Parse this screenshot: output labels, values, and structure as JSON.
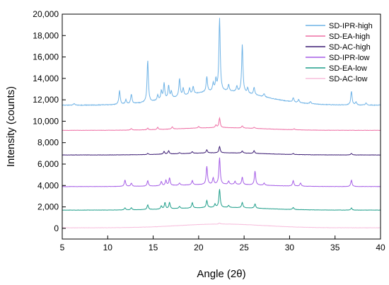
{
  "chart_data": {
    "type": "line",
    "xlabel": "Angle (2θ)",
    "ylabel": "Intensity (counts)",
    "xlim": [
      5,
      40
    ],
    "ylim": [
      -1000,
      20000
    ],
    "xticks": [
      5,
      10,
      15,
      20,
      25,
      30,
      35,
      40
    ],
    "xtick_labels": [
      "5",
      "10",
      "15",
      "20",
      "25",
      "30",
      "35",
      "40"
    ],
    "yticks": [
      0,
      2000,
      4000,
      6000,
      8000,
      10000,
      12000,
      14000,
      16000,
      18000,
      20000
    ],
    "ytick_labels": [
      "0",
      "2,000",
      "4,000",
      "6,000",
      "8,000",
      "10,000",
      "12,000",
      "14,000",
      "16,000",
      "18,000",
      "20,000"
    ],
    "grid": false,
    "legend_position": "top-right",
    "series": [
      {
        "name": "SD-IPR-high",
        "color": "#6fb3e6",
        "baseline": 11500,
        "hump": {
          "center": 22.5,
          "width": 6.5,
          "height": 1300
        },
        "slope": 0,
        "peaks": [
          [
            6.3,
            150
          ],
          [
            11.3,
            1300
          ],
          [
            12.0,
            400
          ],
          [
            12.6,
            900
          ],
          [
            14.4,
            3900
          ],
          [
            15.5,
            500
          ],
          [
            15.9,
            800
          ],
          [
            16.2,
            1500
          ],
          [
            16.7,
            1200
          ],
          [
            17.0,
            600
          ],
          [
            17.9,
            1700
          ],
          [
            18.3,
            700
          ],
          [
            19.0,
            600
          ],
          [
            19.4,
            700
          ],
          [
            20.9,
            1400
          ],
          [
            21.6,
            700
          ],
          [
            21.9,
            1000
          ],
          [
            22.3,
            6800
          ],
          [
            23.3,
            600
          ],
          [
            24.2,
            500
          ],
          [
            24.8,
            4500
          ],
          [
            25.4,
            500
          ],
          [
            26.1,
            700
          ],
          [
            27.2,
            300
          ],
          [
            30.4,
            400
          ],
          [
            31.0,
            300
          ],
          [
            32.3,
            200
          ],
          [
            36.8,
            1300
          ],
          [
            37.3,
            300
          ],
          [
            38.4,
            200
          ]
        ]
      },
      {
        "name": "SD-EA-high",
        "color": "#ee6ea4",
        "baseline": 9150,
        "hump": {
          "center": 22.5,
          "width": 6.5,
          "height": 250
        },
        "slope": 0,
        "peaks": [
          [
            12.6,
            150
          ],
          [
            14.4,
            150
          ],
          [
            15.5,
            200
          ],
          [
            17.1,
            200
          ],
          [
            20.0,
            150
          ],
          [
            21.9,
            250
          ],
          [
            22.3,
            900
          ],
          [
            24.8,
            200
          ],
          [
            26.1,
            100
          ],
          [
            30.5,
            100
          ]
        ]
      },
      {
        "name": "SD-AC-high",
        "color": "#3a1a72",
        "baseline": 6850,
        "hump": {
          "center": 22.5,
          "width": 6.5,
          "height": 200
        },
        "slope": 0,
        "peaks": [
          [
            14.4,
            100
          ],
          [
            16.2,
            250
          ],
          [
            16.7,
            300
          ],
          [
            17.9,
            100
          ],
          [
            19.3,
            150
          ],
          [
            20.9,
            300
          ],
          [
            22.3,
            600
          ],
          [
            24.8,
            200
          ],
          [
            26.1,
            250
          ],
          [
            30.4,
            100
          ],
          [
            36.8,
            150
          ]
        ]
      },
      {
        "name": "SD-IPR-low",
        "color": "#a55de6",
        "baseline": 3900,
        "hump": {
          "center": 22.5,
          "width": 6.5,
          "height": 200
        },
        "slope": 0,
        "peaks": [
          [
            11.9,
            600
          ],
          [
            12.6,
            300
          ],
          [
            14.4,
            500
          ],
          [
            15.9,
            400
          ],
          [
            16.4,
            500
          ],
          [
            16.8,
            700
          ],
          [
            17.9,
            200
          ],
          [
            19.3,
            400
          ],
          [
            20.9,
            1700
          ],
          [
            21.6,
            600
          ],
          [
            22.3,
            2500
          ],
          [
            23.3,
            300
          ],
          [
            24.0,
            300
          ],
          [
            24.8,
            700
          ],
          [
            26.2,
            1300
          ],
          [
            27.2,
            200
          ],
          [
            30.4,
            500
          ],
          [
            31.2,
            300
          ],
          [
            36.8,
            600
          ]
        ]
      },
      {
        "name": "SD-EA-low",
        "color": "#1f9e8a",
        "baseline": 1700,
        "hump": {
          "center": 22.5,
          "width": 6.5,
          "height": 250
        },
        "slope": 0,
        "peaks": [
          [
            11.9,
            200
          ],
          [
            12.6,
            200
          ],
          [
            14.4,
            450
          ],
          [
            15.9,
            300
          ],
          [
            16.3,
            600
          ],
          [
            16.8,
            600
          ],
          [
            17.9,
            200
          ],
          [
            19.3,
            500
          ],
          [
            20.9,
            650
          ],
          [
            21.8,
            300
          ],
          [
            22.3,
            1700
          ],
          [
            23.3,
            200
          ],
          [
            24.8,
            500
          ],
          [
            26.2,
            400
          ],
          [
            30.4,
            200
          ],
          [
            36.8,
            200
          ]
        ]
      },
      {
        "name": "SD-AC-low",
        "color": "#f7bddc",
        "baseline": 50,
        "hump": {
          "center": 22.5,
          "width": 6.5,
          "height": 350
        },
        "slope": 0,
        "peaks": [
          [
            22.3,
            100
          ]
        ]
      }
    ]
  }
}
